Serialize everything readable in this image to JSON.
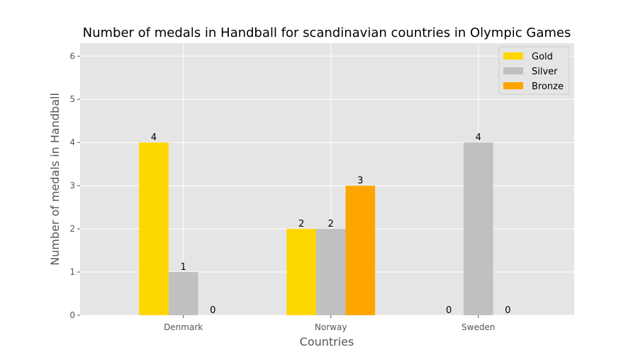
{
  "chart_data": {
    "type": "bar",
    "title": "Number of medals in Handball for scandinavian countries in Olympic Games",
    "xlabel": "Countries",
    "ylabel": "Number of medals in Handball",
    "categories": [
      "Denmark",
      "Norway",
      "Sweden"
    ],
    "series": [
      {
        "name": "Gold",
        "values": [
          4,
          2,
          0
        ],
        "color": "#ffd700"
      },
      {
        "name": "Silver",
        "values": [
          1,
          2,
          4
        ],
        "color": "#c0c0c0"
      },
      {
        "name": "Bronze",
        "values": [
          0,
          3,
          0
        ],
        "color": "#ffa500"
      }
    ],
    "ylim": [
      0,
      6.3
    ],
    "yticks": [
      0,
      1,
      2,
      3,
      4,
      5,
      6
    ],
    "grid": true,
    "legend": "top-right",
    "background": "#e5e5e5"
  }
}
